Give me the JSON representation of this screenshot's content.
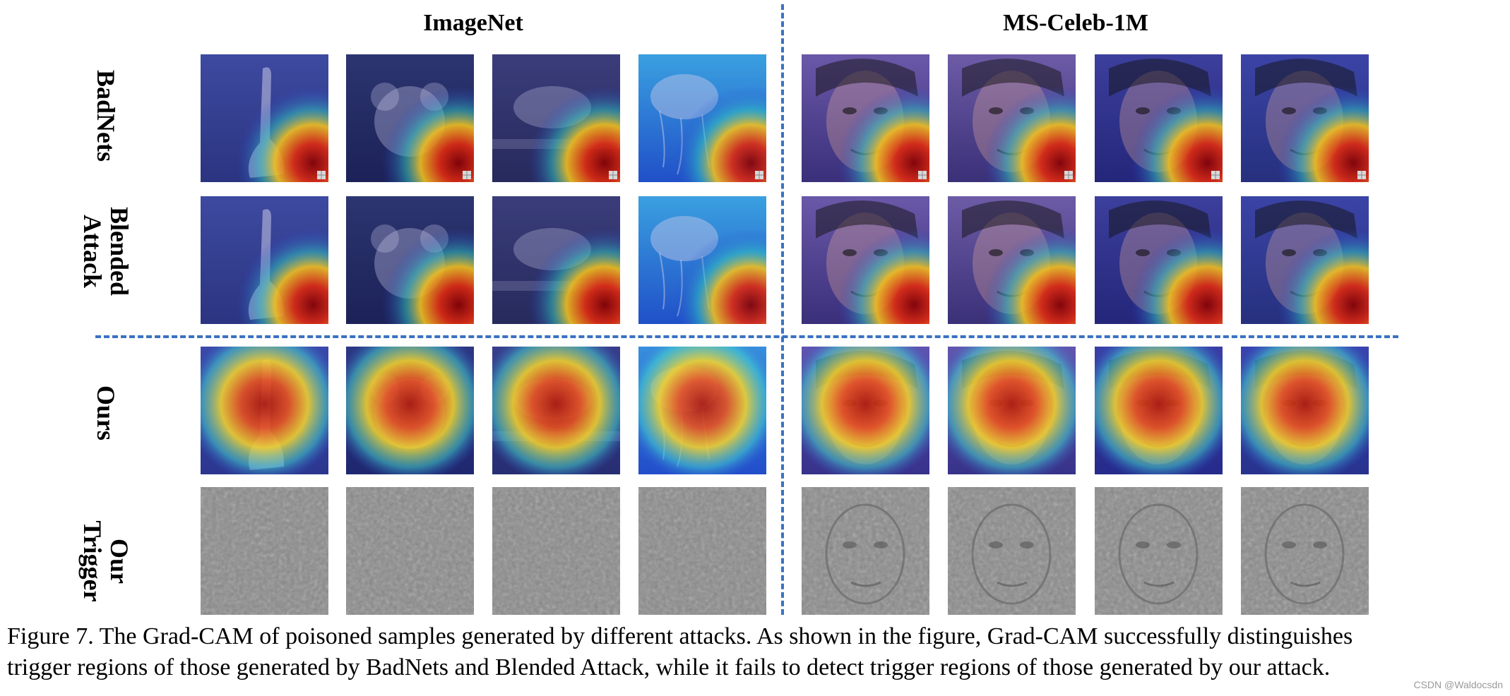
{
  "headers": {
    "imagenet": "ImageNet",
    "celeb": "MS-Celeb-1M"
  },
  "rows": [
    {
      "key": "badnets",
      "label_lines": [
        "BadNets"
      ]
    },
    {
      "key": "blended",
      "label_lines": [
        "Blended",
        "Attack"
      ]
    },
    {
      "key": "ours",
      "label_lines": [
        "Ours"
      ]
    },
    {
      "key": "trigger",
      "label_lines": [
        "Our",
        "Trigger"
      ]
    }
  ],
  "columns": [
    {
      "dataset": "ImageNet",
      "subject": "swan"
    },
    {
      "dataset": "ImageNet",
      "subject": "koala-in-grass"
    },
    {
      "dataset": "ImageNet",
      "subject": "koala-on-branch"
    },
    {
      "dataset": "ImageNet",
      "subject": "jellyfish"
    },
    {
      "dataset": "MS-Celeb-1M",
      "subject": "female-face-1"
    },
    {
      "dataset": "MS-Celeb-1M",
      "subject": "female-face-2"
    },
    {
      "dataset": "MS-Celeb-1M",
      "subject": "male-face-1"
    },
    {
      "dataset": "MS-Celeb-1M",
      "subject": "male-face-2"
    }
  ],
  "caption": {
    "line1": "Figure 7. The Grad-CAM of poisoned samples generated by different attacks. As shown in the figure, Grad-CAM successfully distinguishes",
    "line2": "trigger regions of those generated by BadNets and Blended Attack, while it fails to detect trigger regions of those generated by our attack."
  },
  "watermark": "CSDN @Waldocsdn",
  "colors": {
    "divider": "#3a72c2",
    "cam_cool": "#2b3fd6",
    "cam_hot": "#c41c0e"
  }
}
